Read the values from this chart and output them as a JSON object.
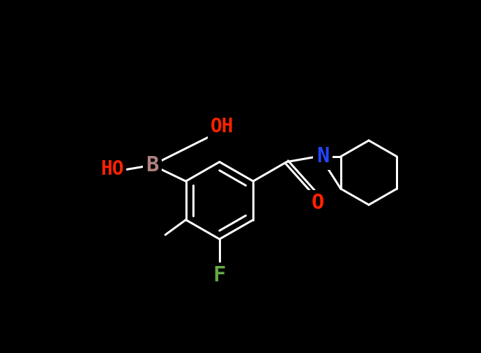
{
  "bg_color": "#000000",
  "bond_color": "#ffffff",
  "bond_width": 2.2,
  "atom_colors": {
    "OH": "#ff2200",
    "HO": "#ff2200",
    "B": "#b08080",
    "N": "#2244ff",
    "O": "#ff2200",
    "F": "#66aa44",
    "C": "#ffffff"
  },
  "font_size": 20,
  "fig_w": 6.9,
  "fig_h": 5.07,
  "dpi": 100
}
